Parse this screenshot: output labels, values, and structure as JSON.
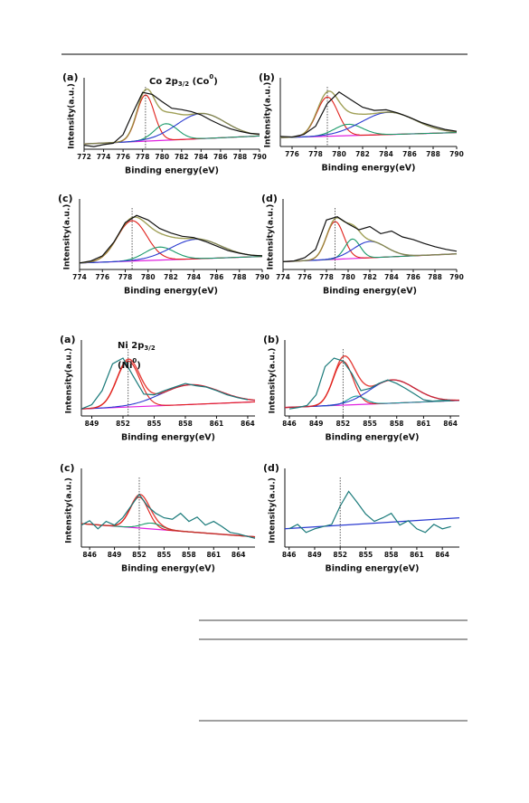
{
  "chart_data": [
    {
      "type": "line",
      "panel_label": "(a)",
      "xlabel": "Binding energy(eV)",
      "ylabel": "Intensity(a.u.)",
      "annotation": [
        [
          {
            "text": "Co 2p",
            "shift": "none"
          },
          {
            "text": "3/2",
            "shift": "sub"
          },
          {
            "text": " (Co",
            "shift": "none"
          },
          {
            "text": "0",
            "shift": "sup"
          },
          {
            "text": ")",
            "shift": "none"
          }
        ]
      ],
      "xlim": [
        772,
        790
      ],
      "xticks": [
        772,
        774,
        776,
        778,
        780,
        782,
        784,
        786,
        788,
        790
      ],
      "ylim": [
        0,
        100
      ],
      "fit_color": "#8f8f3a",
      "x": [
        772,
        773,
        774,
        775,
        776,
        777,
        778,
        779,
        780,
        781,
        782,
        783,
        784,
        785,
        786,
        787,
        788,
        789,
        790
      ],
      "series": [
        {
          "color": "#111111",
          "values": [
            6,
            4,
            7,
            9,
            22,
            55,
            86,
            83,
            72,
            62,
            60,
            57,
            52,
            44,
            37,
            31,
            27,
            24,
            23
          ]
        }
      ],
      "peaks": [
        {
          "color": "#e0201a",
          "center": 778.3,
          "height": 70,
          "width": 0.9
        },
        {
          "color": "#1a9a6a",
          "center": 780.4,
          "height": 25,
          "width": 1.2
        },
        {
          "color": "#2a3ad0",
          "center": 784,
          "height": 38,
          "width": 2.5
        }
      ],
      "baseline": {
        "color": "#e020e0",
        "values": [
          8,
          20
        ]
      },
      "marker": 778.3
    },
    {
      "type": "line",
      "panel_label": "(b)",
      "xlabel": "Binding energy(eV)",
      "ylabel": "Intensity(a.u.)",
      "xlim": [
        775,
        790
      ],
      "xticks": [
        776,
        778,
        780,
        782,
        784,
        786,
        788,
        790
      ],
      "ylim": [
        0,
        100
      ],
      "fit_color": "#8f8f3a",
      "x": [
        775,
        776,
        777,
        778,
        779,
        780,
        781,
        782,
        783,
        784,
        785,
        786,
        787,
        788,
        789,
        790
      ],
      "series": [
        {
          "color": "#111111",
          "values": [
            16,
            15,
            19,
            32,
            68,
            86,
            74,
            62,
            57,
            58,
            53,
            46,
            38,
            32,
            27,
            24
          ]
        }
      ],
      "peaks": [
        {
          "color": "#e0201a",
          "center": 779,
          "height": 62,
          "width": 0.9
        },
        {
          "color": "#1a9a6a",
          "center": 780.8,
          "height": 18,
          "width": 1.2
        },
        {
          "color": "#2a3ad0",
          "center": 784.2,
          "height": 35,
          "width": 2.3
        }
      ],
      "baseline": {
        "color": "#e020e0",
        "values": [
          14,
          22
        ]
      },
      "marker": 779
    },
    {
      "type": "line",
      "panel_label": "(c)",
      "xlabel": "Binding energy(eV)",
      "ylabel": "Intensity(a.u.)",
      "xlim": [
        774,
        790
      ],
      "xticks": [
        774,
        776,
        778,
        780,
        782,
        784,
        786,
        788,
        790
      ],
      "ylim": [
        0,
        100
      ],
      "fit_color": "#8f8f3a",
      "x": [
        774,
        775,
        776,
        777,
        778,
        779,
        780,
        781,
        782,
        783,
        784,
        785,
        786,
        787,
        788,
        789,
        790
      ],
      "series": [
        {
          "color": "#111111",
          "values": [
            10,
            13,
            21,
            42,
            72,
            83,
            76,
            63,
            56,
            51,
            49,
            43,
            36,
            29,
            25,
            22,
            21
          ]
        }
      ],
      "peaks": [
        {
          "color": "#e0201a",
          "center": 778.6,
          "height": 62,
          "width": 1.3
        },
        {
          "color": "#1a9a6a",
          "center": 781,
          "height": 20,
          "width": 1.3
        },
        {
          "color": "#2a3ad0",
          "center": 784.2,
          "height": 30,
          "width": 2.2
        }
      ],
      "baseline": {
        "color": "#e020e0",
        "values": [
          10,
          20
        ]
      },
      "marker": 778.6
    },
    {
      "type": "line",
      "panel_label": "(d)",
      "xlabel": "Binding energy(eV)",
      "ylabel": "Intensity(a.u.)",
      "xlim": [
        774,
        790
      ],
      "xticks": [
        774,
        776,
        778,
        780,
        782,
        784,
        786,
        788,
        790
      ],
      "ylim": [
        0,
        100
      ],
      "fit_color": "#8f8f3a",
      "x": [
        774,
        775,
        776,
        777,
        778,
        779,
        780,
        781,
        782,
        783,
        784,
        785,
        786,
        787,
        788,
        789,
        790
      ],
      "series": [
        {
          "color": "#111111",
          "values": [
            12,
            13,
            18,
            31,
            76,
            81,
            70,
            61,
            66,
            55,
            59,
            50,
            46,
            40,
            35,
            31,
            28
          ]
        }
      ],
      "peaks": [
        {
          "color": "#e0201a",
          "center": 778.8,
          "height": 58,
          "width": 0.8
        },
        {
          "color": "#1a9a6a",
          "center": 780.4,
          "height": 30,
          "width": 0.7
        },
        {
          "color": "#2a3ad0",
          "center": 782,
          "height": 25,
          "width": 1.5
        }
      ],
      "baseline": {
        "color": "#e020e0",
        "values": [
          12,
          24
        ]
      },
      "marker": 778.8
    },
    {
      "type": "line",
      "panel_label": "(a)",
      "xlabel": "Binding energy(eV)",
      "ylabel": "Intensity(a.u.)",
      "annotation": [
        [
          {
            "text": "Ni 2p",
            "shift": "none"
          },
          {
            "text": "3/2",
            "shift": "sub"
          }
        ],
        [
          {
            "text": "(Ni",
            "shift": "none"
          },
          {
            "text": "0",
            "shift": "sup"
          },
          {
            "text": ")",
            "shift": "none"
          }
        ]
      ],
      "xlim": [
        848,
        864.7
      ],
      "xticks": [
        849,
        852,
        855,
        858,
        861,
        864
      ],
      "ylim": [
        0,
        100
      ],
      "fit_color": "#e0201a",
      "x": [
        848,
        849,
        850,
        851,
        852,
        853,
        854,
        855,
        856,
        857,
        858,
        859,
        860,
        861,
        862,
        863,
        864
      ],
      "series": [
        {
          "color": "#1a7a7a",
          "values": [
            10,
            16,
            36,
            74,
            82,
            56,
            31,
            30,
            36,
            41,
            46,
            43,
            41,
            36,
            30,
            26,
            23
          ]
        }
      ],
      "peaks": [
        {
          "color": "#e0201a",
          "center": 852.5,
          "height": 65,
          "width": 1.1
        },
        {
          "color": "#2a3ad0",
          "center": 858.5,
          "height": 28,
          "width": 2.8
        }
      ],
      "baseline": {
        "color": "#e020e0",
        "values": [
          10,
          20
        ]
      },
      "marker": 852.5
    },
    {
      "type": "line",
      "panel_label": "(b)",
      "xlabel": "Binding energy(eV)",
      "ylabel": "Intensity(a.u.)",
      "xlim": [
        845.5,
        865
      ],
      "xticks": [
        846,
        849,
        852,
        855,
        858,
        861,
        864
      ],
      "ylim": [
        0,
        100
      ],
      "fit_color": "#e0201a",
      "x": [
        846,
        847,
        848,
        849,
        850,
        851,
        852,
        853,
        854,
        855,
        856,
        857,
        858,
        859,
        860,
        861,
        862,
        863,
        864
      ],
      "series": [
        {
          "color": "#1a7a7a",
          "values": [
            10,
            12,
            15,
            30,
            70,
            82,
            78,
            60,
            36,
            39,
            46,
            51,
            46,
            39,
            31,
            23,
            21,
            22,
            22
          ]
        }
      ],
      "peaks": [
        {
          "color": "#e0201a",
          "center": 852,
          "height": 62,
          "width": 1.1
        },
        {
          "color": "#1a9a9a",
          "center": 853.5,
          "height": 12,
          "width": 1
        },
        {
          "color": "#2a3ad0",
          "center": 857.5,
          "height": 33,
          "width": 2.5
        }
      ],
      "baseline": {
        "color": "#e020e0",
        "values": [
          12,
          22
        ]
      },
      "marker": 852
    },
    {
      "type": "line",
      "panel_label": "(c)",
      "xlabel": "Binding energy(eV)",
      "ylabel": "Intensity(a.u.)",
      "xlim": [
        845,
        866
      ],
      "xticks": [
        846,
        849,
        852,
        855,
        858,
        861,
        864
      ],
      "ylim": [
        0,
        100
      ],
      "fit_color": "#e0201a",
      "x": [
        845,
        846,
        847,
        848,
        849,
        850,
        851,
        852,
        853,
        854,
        855,
        856,
        857,
        858,
        859,
        860,
        861,
        862,
        863,
        864,
        865,
        866
      ],
      "series": [
        {
          "color": "#1a7a7a",
          "values": [
            30,
            36,
            25,
            35,
            30,
            40,
            56,
            72,
            56,
            46,
            40,
            38,
            46,
            35,
            41,
            30,
            35,
            28,
            20,
            18,
            15,
            12
          ]
        }
      ],
      "peaks": [
        {
          "color": "#e0201a",
          "center": 852,
          "height": 42,
          "width": 1.1
        },
        {
          "color": "#1a9a6a",
          "center": 853.5,
          "height": 8,
          "width": 1.2
        }
      ],
      "baseline": {
        "color": "#e020e0",
        "values": [
          32,
          14
        ]
      },
      "marker": 852
    },
    {
      "type": "line",
      "panel_label": "(d)",
      "xlabel": "Binding energy(eV)",
      "ylabel": "Intensity(a.u.)",
      "xlim": [
        845.5,
        866
      ],
      "xticks": [
        846,
        849,
        852,
        855,
        858,
        861,
        864
      ],
      "ylim": [
        0,
        100
      ],
      "fit_color": "#e0201a",
      "x": [
        846,
        847,
        848,
        849,
        850,
        851,
        852,
        853,
        854,
        855,
        856,
        857,
        858,
        859,
        860,
        861,
        862,
        863,
        864,
        865
      ],
      "series": [
        {
          "color": "#1a7a7a",
          "values": [
            25,
            31,
            20,
            25,
            28,
            31,
            56,
            76,
            61,
            45,
            35,
            40,
            46,
            30,
            36,
            25,
            20,
            31,
            25,
            28
          ]
        }
      ],
      "peaks": [],
      "baseline": {
        "color": "#2a3ad0",
        "values": [
          25,
          40
        ]
      },
      "marker": 852
    }
  ]
}
